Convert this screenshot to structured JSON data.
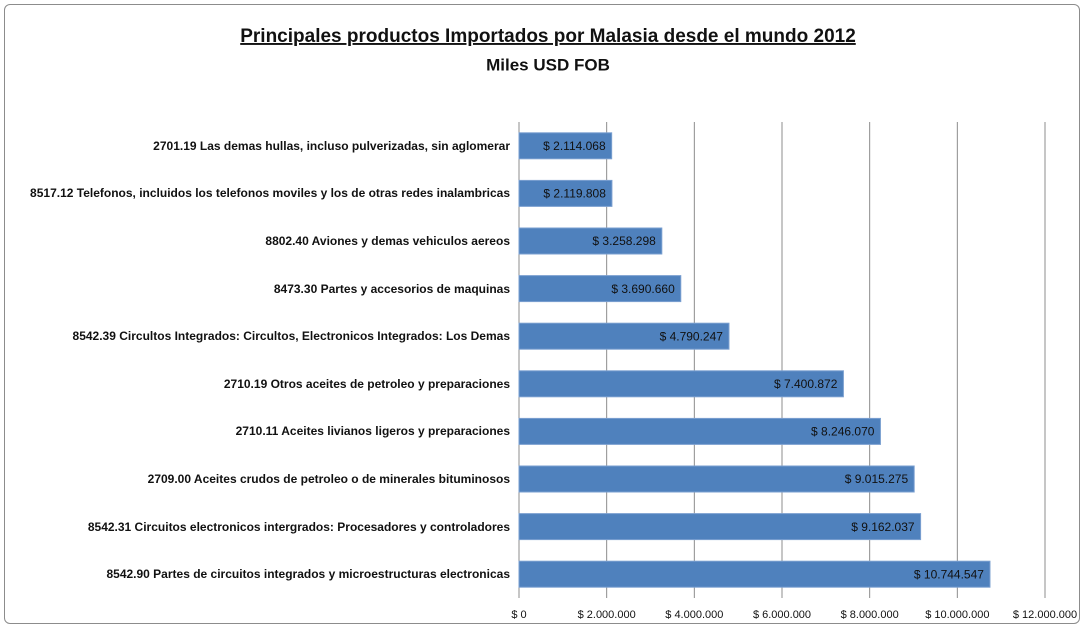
{
  "chart_data": {
    "type": "barh",
    "title": "Principales productos Importados por Malasia desde el mundo 2012",
    "subtitle": "Miles USD FOB",
    "categories": [
      "2701.19 Las demas hullas, incluso pulverizadas, sin aglomerar",
      "8517.12 Telefonos, incluidos los telefonos moviles y los de otras redes inalambricas",
      "8802.40 Aviones y demas vehiculos aereos",
      "8473.30 Partes y accesorios de maquinas",
      "8542.39 Circultos Integrados: Circultos, Electronicos Integrados: Los Demas",
      "2710.19 Otros aceites de petroleo y preparaciones",
      "2710.11 Aceites livianos ligeros y preparaciones",
      "2709.00 Aceites crudos de petroleo o de minerales bituminosos",
      "8542.31 Circuitos electronicos intergrados: Procesadores y controladores",
      "8542.90 Partes de circuitos integrados y microestructuras electronicas"
    ],
    "values": [
      2114068,
      2119808,
      3258298,
      3690660,
      4790247,
      7400872,
      8246070,
      9015275,
      9162037,
      10744547
    ],
    "value_labels": [
      "$ 2.114.068",
      "$ 2.119.808",
      "$ 3.258.298",
      "$ 3.690.660",
      "$ 4.790.247",
      "$ 7.400.872",
      "$ 8.246.070",
      "$ 9.015.275",
      "$ 9.162.037",
      "$ 10.744.547"
    ],
    "color": "#4f81bd",
    "xlim": [
      0,
      12000000
    ],
    "xticks": [
      {
        "value": 0,
        "label": "$ 0"
      },
      {
        "value": 2000000,
        "label": "$ 2.000.000"
      },
      {
        "value": 4000000,
        "label": "$ 4.000.000"
      },
      {
        "value": 6000000,
        "label": "$ 6.000.000"
      },
      {
        "value": 8000000,
        "label": "$ 8.000.000"
      },
      {
        "value": 10000000,
        "label": "$ 10.000.000"
      },
      {
        "value": 12000000,
        "label": "$ 12.000.000"
      }
    ],
    "grid": true
  }
}
